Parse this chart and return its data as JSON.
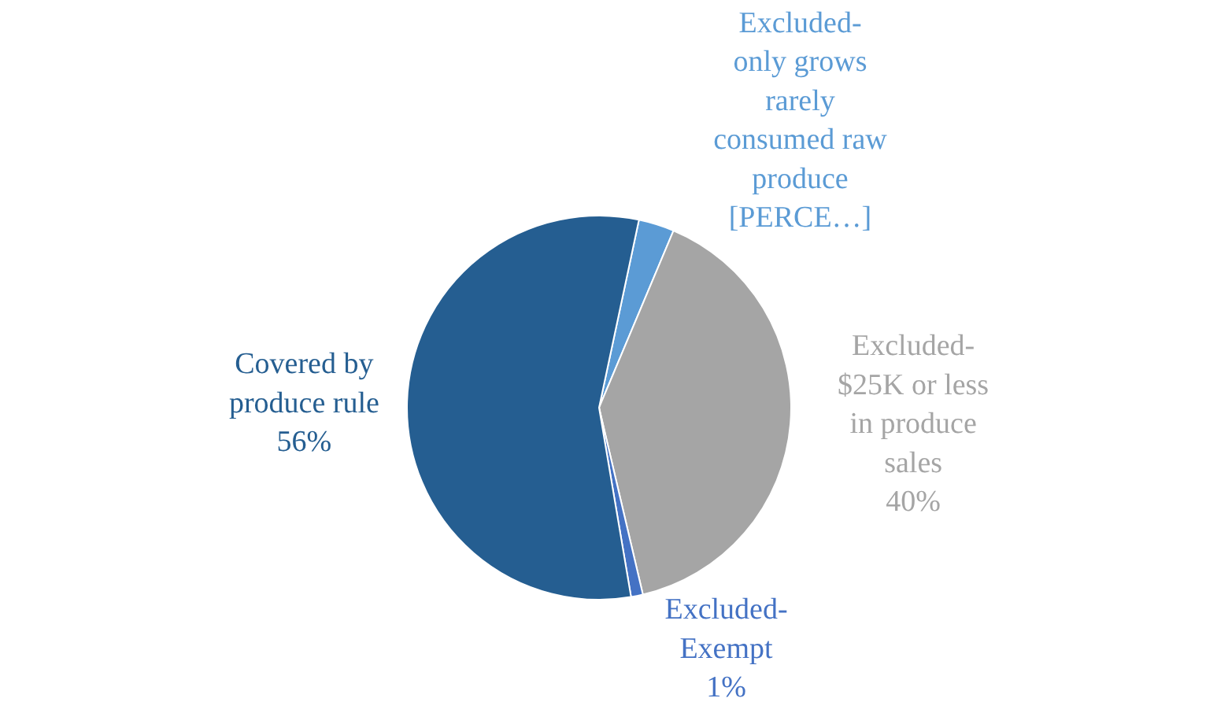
{
  "chart_data": {
    "type": "pie",
    "categories": [
      "Excluded-only grows rarely consumed raw produce",
      "Excluded-$25K or less in produce sales",
      "Excluded-Exempt",
      "Covered by produce rule"
    ],
    "values": [
      3,
      40,
      1,
      56
    ],
    "colors": [
      "#5b9bd5",
      "#a5a5a5",
      "#4472c4",
      "#255e91"
    ],
    "value_labels": [
      "[PERCE…]",
      "40%",
      "1%",
      "56%"
    ],
    "legend": false
  }
}
